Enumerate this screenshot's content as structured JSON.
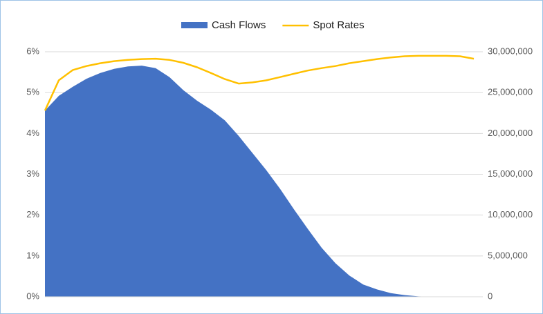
{
  "chart_data": {
    "type": "combo",
    "categories": [
      null,
      null,
      null,
      null,
      null,
      null,
      null,
      null,
      null,
      null,
      null,
      null,
      null,
      null,
      null,
      null,
      null,
      null,
      null,
      null,
      null,
      null,
      null,
      null,
      null,
      null,
      null,
      null,
      null,
      null,
      null,
      null
    ],
    "series": [
      {
        "name": "Cash Flows",
        "type": "area",
        "axis": "y2",
        "color": "#4472c4",
        "values": [
          22800000,
          24600000,
          25700000,
          26700000,
          27400000,
          27900000,
          28200000,
          28300000,
          28000000,
          26900000,
          25300000,
          24000000,
          22900000,
          21600000,
          19700000,
          17600000,
          15500000,
          13200000,
          10700000,
          8300000,
          6000000,
          4100000,
          2600000,
          1500000,
          900000,
          450000,
          200000,
          50000,
          0,
          0,
          0,
          0
        ]
      },
      {
        "name": "Spot Rates",
        "type": "line",
        "axis": "y",
        "color": "#ffc000",
        "values": [
          4.56,
          5.3,
          5.55,
          5.65,
          5.72,
          5.77,
          5.8,
          5.82,
          5.83,
          5.8,
          5.73,
          5.62,
          5.48,
          5.33,
          5.22,
          5.25,
          5.3,
          5.38,
          5.46,
          5.54,
          5.6,
          5.65,
          5.72,
          5.77,
          5.82,
          5.86,
          5.89,
          5.9,
          5.9,
          5.9,
          5.89,
          5.83
        ]
      }
    ],
    "ylim": [
      0,
      6
    ],
    "yticks": [
      {
        "value": 0,
        "label": "0%"
      },
      {
        "value": 1,
        "label": "1%"
      },
      {
        "value": 2,
        "label": "2%"
      },
      {
        "value": 3,
        "label": "3%"
      },
      {
        "value": 4,
        "label": "4%"
      },
      {
        "value": 5,
        "label": "5%"
      },
      {
        "value": 6,
        "label": "6%"
      }
    ],
    "y2lim": [
      0,
      30000000
    ],
    "y2ticks": [
      0,
      {
        "value": 5000000,
        "label": "5,000,000"
      },
      {
        "value": 10000000,
        "label": "10,000,000"
      },
      {
        "value": 15000000,
        "label": "15,000,000"
      },
      {
        "value": 20000000,
        "label": "20,000,000"
      },
      {
        "value": 25000000,
        "label": "25,000,000"
      },
      {
        "value": 30000000,
        "label": "30,000,000"
      }
    ],
    "grid": true,
    "legend": "top"
  }
}
